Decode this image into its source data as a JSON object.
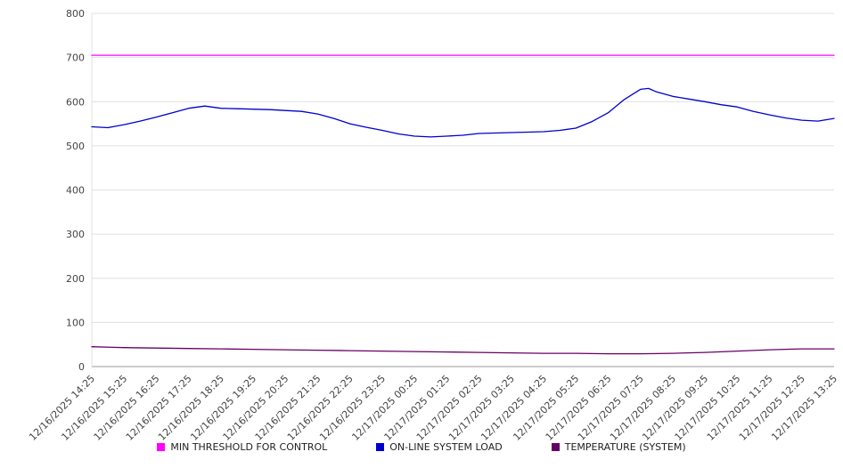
{
  "chart_data": {
    "type": "line",
    "title": "",
    "xlabel": "",
    "ylabel": "",
    "ylim": [
      0,
      800
    ],
    "yticks": [
      0,
      100,
      200,
      300,
      400,
      500,
      600,
      700,
      800
    ],
    "grid": true,
    "legend_position": "bottom",
    "categories": [
      "12/16/2025 14:25",
      "12/16/2025 15:25",
      "12/16/2025 16:25",
      "12/16/2025 17:25",
      "12/16/2025 18:25",
      "12/16/2025 19:25",
      "12/16/2025 20:25",
      "12/16/2025 21:25",
      "12/16/2025 22:25",
      "12/16/2025 23:25",
      "12/17/2025 00:25",
      "12/17/2025 01:25",
      "12/17/2025 02:25",
      "12/17/2025 03:25",
      "12/17/2025 04:25",
      "12/17/2025 05:25",
      "12/17/2025 06:25",
      "12/17/2025 07:25",
      "12/17/2025 08:25",
      "12/17/2025 09:25",
      "12/17/2025 10:25",
      "12/17/2025 11:25",
      "12/17/2025 12:25",
      "12/17/2025 13:25"
    ],
    "series": [
      {
        "name": "MIN THRESHOLD FOR CONTROL",
        "color": "#ff00ff",
        "x": [
          0,
          23
        ],
        "values": [
          705,
          705
        ]
      },
      {
        "name": "ON-LINE SYSTEM LOAD",
        "color": "#0000cc",
        "x": [
          0,
          0.5,
          1,
          1.5,
          2,
          2.5,
          3,
          3.5,
          4,
          4.5,
          5,
          5.5,
          6,
          6.5,
          7,
          7.5,
          8,
          8.5,
          9,
          9.5,
          10,
          10.5,
          11,
          11.5,
          12,
          12.5,
          13,
          13.5,
          14,
          14.5,
          15,
          15.5,
          16,
          16.5,
          17,
          17.25,
          17.5,
          18,
          18.5,
          19,
          19.5,
          20,
          20.5,
          21,
          21.5,
          22,
          22.5,
          23
        ],
        "values": [
          543,
          541,
          548,
          556,
          565,
          575,
          585,
          590,
          585,
          584,
          583,
          582,
          580,
          578,
          572,
          562,
          550,
          542,
          535,
          527,
          522,
          520,
          522,
          524,
          528,
          529,
          530,
          531,
          532,
          535,
          540,
          555,
          575,
          605,
          628,
          630,
          622,
          612,
          606,
          600,
          593,
          588,
          578,
          570,
          563,
          558,
          556,
          562
        ]
      },
      {
        "name": "TEMPERATURE (SYSTEM)",
        "color": "#660066",
        "x": [
          0,
          1,
          2,
          3,
          4,
          5,
          6,
          7,
          8,
          9,
          10,
          11,
          12,
          13,
          14,
          15,
          16,
          17,
          18,
          19,
          20,
          21,
          22,
          23
        ],
        "values": [
          45,
          43,
          42,
          41,
          40,
          39,
          38,
          37,
          36,
          35,
          34,
          33,
          32,
          31,
          30,
          30,
          29,
          29,
          30,
          32,
          35,
          38,
          40,
          40
        ]
      }
    ],
    "colors": {
      "grid": "#e0e0e0",
      "axis": "#999999",
      "tick_text": "#444444",
      "background": "#ffffff"
    }
  }
}
